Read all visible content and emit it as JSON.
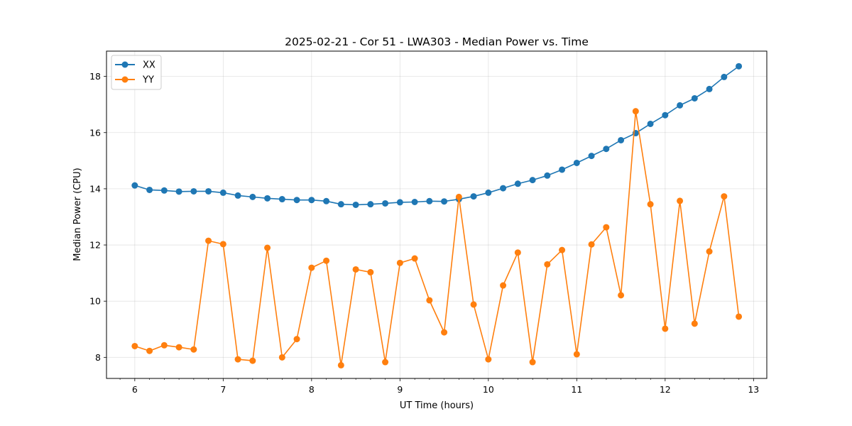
{
  "chart_data": {
    "type": "line",
    "title": "2025-02-21 - Cor 51 - LWA303 - Median Power vs. Time",
    "xlabel": "UT Time (hours)",
    "ylabel": "Median Power (CPU)",
    "xlim": [
      5.68,
      13.15
    ],
    "ylim": [
      7.25,
      18.9
    ],
    "xticks": [
      6,
      7,
      8,
      9,
      10,
      11,
      12,
      13
    ],
    "xtick_labels": [
      "6",
      "7",
      "8",
      "9",
      "10",
      "11",
      "12",
      "13"
    ],
    "xminor_step": 0.1667,
    "yticks": [
      8,
      10,
      12,
      14,
      16,
      18
    ],
    "ytick_labels": [
      "8",
      "10",
      "12",
      "14",
      "16",
      "18"
    ],
    "grid": true,
    "legend_position": "top-left",
    "x": [
      6.0,
      6.1667,
      6.3333,
      6.5,
      6.6667,
      6.8333,
      7.0,
      7.1667,
      7.3333,
      7.5,
      7.6667,
      7.8333,
      8.0,
      8.1667,
      8.3333,
      8.5,
      8.6667,
      8.8333,
      9.0,
      9.1667,
      9.3333,
      9.5,
      9.6667,
      9.8333,
      10.0,
      10.1667,
      10.3333,
      10.5,
      10.6667,
      10.8333,
      11.0,
      11.1667,
      11.3333,
      11.5,
      11.6667,
      11.8333,
      12.0,
      12.1667,
      12.3333,
      12.5,
      12.6667,
      12.8333
    ],
    "series": [
      {
        "name": "XX",
        "color": "#1f77b4",
        "values": [
          14.12,
          13.96,
          13.94,
          13.9,
          13.91,
          13.91,
          13.86,
          13.76,
          13.71,
          13.66,
          13.63,
          13.6,
          13.6,
          13.56,
          13.45,
          13.43,
          13.45,
          13.48,
          13.52,
          13.53,
          13.56,
          13.55,
          13.63,
          13.73,
          13.86,
          14.02,
          14.18,
          14.31,
          14.47,
          14.68,
          14.92,
          15.17,
          15.42,
          15.73,
          15.98,
          16.31,
          16.62,
          16.97,
          17.22,
          17.55,
          17.98,
          18.36
        ]
      },
      {
        "name": "YY",
        "color": "#ff7f0e",
        "values": [
          8.4,
          8.23,
          8.43,
          8.36,
          8.28,
          12.15,
          12.03,
          7.93,
          7.88,
          11.9,
          8.0,
          8.65,
          11.19,
          11.44,
          7.72,
          11.13,
          11.03,
          7.83,
          11.36,
          11.52,
          10.03,
          8.89,
          13.71,
          9.88,
          7.93,
          10.56,
          11.73,
          7.83,
          11.31,
          11.82,
          8.11,
          12.02,
          12.63,
          10.21,
          16.76,
          13.45,
          9.02,
          13.57,
          9.2,
          11.77,
          13.73,
          9.45
        ]
      }
    ]
  }
}
